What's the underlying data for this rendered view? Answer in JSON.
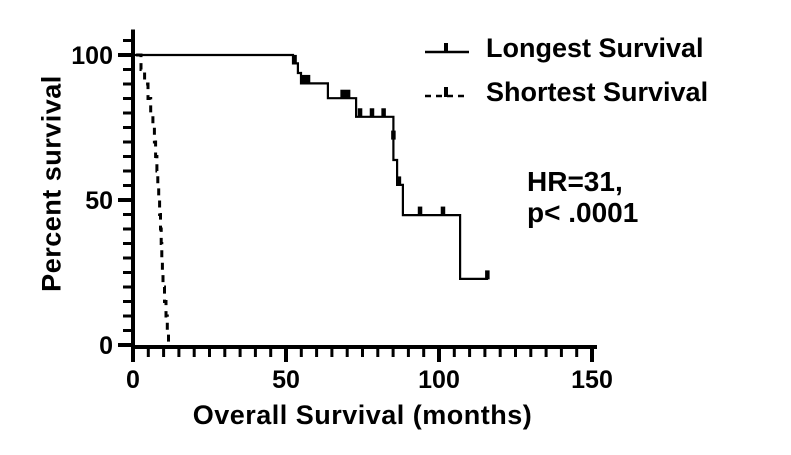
{
  "figure": {
    "background": "#ffffff",
    "ink": "#000000"
  },
  "legend": {
    "items": [
      {
        "label": "Longest Survival",
        "style": "solid"
      },
      {
        "label": "Shortest Survival",
        "style": "dashed"
      }
    ]
  },
  "annotation": {
    "line1": "HR=31,",
    "line2": "p< .0001"
  },
  "chart_data": {
    "type": "line",
    "subtype": "kaplan-meier-step",
    "title": "",
    "xlabel": "Overall Survival (months)",
    "ylabel": "Percent survival",
    "xlim": [
      0,
      150
    ],
    "ylim": [
      0,
      105
    ],
    "x_major_ticks": [
      0,
      50,
      100,
      150
    ],
    "x_minor_step": 5,
    "y_major_ticks": [
      0,
      50,
      100
    ],
    "y_minor_step": 5,
    "grid": false,
    "legend_position": "top-right",
    "annotations": [
      "HR=31,",
      "p< .0001"
    ],
    "series": [
      {
        "name": "Longest Survival",
        "line": "solid",
        "steps": [
          [
            0,
            100
          ],
          [
            52.3,
            100
          ],
          [
            52.3,
            97.1
          ],
          [
            53.9,
            97.1
          ],
          [
            53.9,
            93.8
          ],
          [
            54.9,
            93.8
          ],
          [
            54.9,
            90.2
          ],
          [
            63.7,
            90.2
          ],
          [
            63.7,
            85.1
          ],
          [
            72.9,
            85.1
          ],
          [
            72.9,
            78.7
          ],
          [
            85.1,
            78.7
          ],
          [
            85.1,
            63.8
          ],
          [
            86.3,
            63.8
          ],
          [
            86.3,
            55.2
          ],
          [
            88.2,
            55.2
          ],
          [
            88.2,
            44.8
          ],
          [
            106.9,
            44.8
          ],
          [
            106.9,
            22.8
          ],
          [
            116,
            22.8
          ]
        ],
        "censor_marks": [
          [
            52.8,
            97.1,
            0
          ],
          [
            56.3,
            90.2,
            1
          ],
          [
            69.4,
            85.1,
            1
          ],
          [
            74.2,
            78.7,
            0
          ],
          [
            78.1,
            78.7,
            0
          ],
          [
            81.9,
            78.7,
            0
          ],
          [
            85.1,
            71,
            0
          ],
          [
            86.9,
            55.2,
            0
          ],
          [
            93.8,
            44.8,
            0
          ],
          [
            101.3,
            44.8,
            0
          ],
          [
            115.8,
            22.8,
            0
          ]
        ]
      },
      {
        "name": "Shortest Survival",
        "line": "dashed",
        "steps": [
          [
            1,
            100
          ],
          [
            2.6,
            100
          ],
          [
            2.6,
            95
          ],
          [
            3.8,
            95
          ],
          [
            3.8,
            90
          ],
          [
            4.9,
            90
          ],
          [
            4.9,
            85
          ],
          [
            5.8,
            85
          ],
          [
            5.8,
            80
          ],
          [
            6.5,
            80
          ],
          [
            6.5,
            75
          ],
          [
            7.0,
            75
          ],
          [
            7.0,
            70
          ],
          [
            7.4,
            70
          ],
          [
            7.4,
            65
          ],
          [
            7.8,
            65
          ],
          [
            7.8,
            60
          ],
          [
            8.1,
            60
          ],
          [
            8.1,
            55
          ],
          [
            8.4,
            55
          ],
          [
            8.4,
            50
          ],
          [
            8.7,
            50
          ],
          [
            8.7,
            45
          ],
          [
            9.0,
            45
          ],
          [
            9.0,
            40
          ],
          [
            9.2,
            40
          ],
          [
            9.2,
            35
          ],
          [
            9.4,
            35
          ],
          [
            9.4,
            30
          ],
          [
            9.6,
            30
          ],
          [
            9.6,
            25
          ],
          [
            9.8,
            25
          ],
          [
            9.8,
            20
          ],
          [
            10.3,
            20
          ],
          [
            10.3,
            15
          ],
          [
            10.8,
            15
          ],
          [
            10.8,
            10
          ],
          [
            11.2,
            10
          ],
          [
            11.2,
            5
          ],
          [
            11.6,
            5
          ],
          [
            11.6,
            0
          ],
          [
            12,
            0
          ]
        ],
        "censor_marks": []
      }
    ]
  }
}
